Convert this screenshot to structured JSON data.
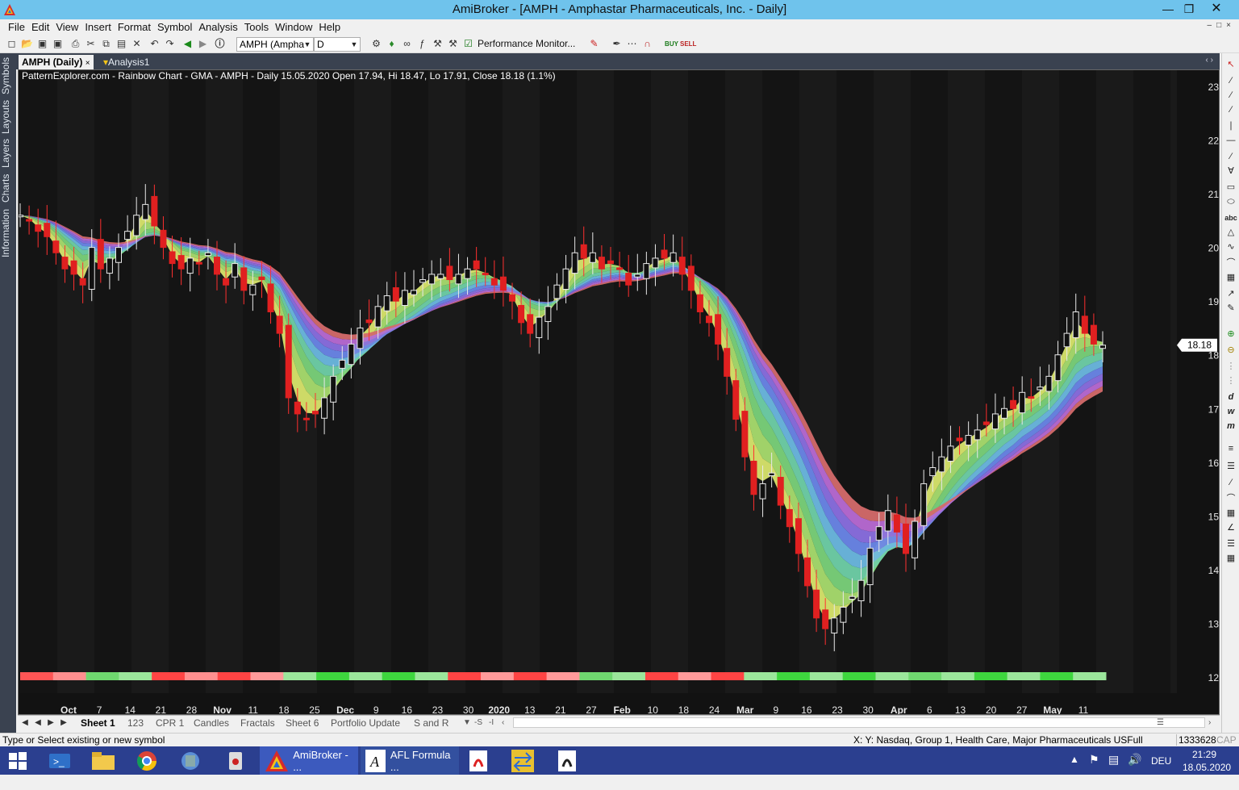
{
  "window": {
    "title": "AmiBroker - [AMPH - Amphastar Pharmaceuticals, Inc. - Daily]"
  },
  "menu": [
    "File",
    "Edit",
    "View",
    "Insert",
    "Format",
    "Symbol",
    "Analysis",
    "Tools",
    "Window",
    "Help"
  ],
  "toolbar": {
    "symbol": "AMPH (Ampha",
    "interval": "D",
    "performance_monitor": "Performance Monitor..."
  },
  "sidebar_tabs": [
    "Symbols",
    "Layouts",
    "Layers",
    "Charts",
    "Information"
  ],
  "doc_tabs": [
    {
      "label": "AMPH (Daily)",
      "active": true
    },
    {
      "label": "Analysis1",
      "active": false
    }
  ],
  "chart_data": {
    "type": "candlestick",
    "title": "PatternExplorer.com - Rainbow Chart  - GMA - AMPH - Daily 15.05.2020 Open 17.94, Hi 18.47, Lo 17.91, Close 18.18 (1.1%)",
    "last_price": "18.18",
    "y_ticks": [
      23,
      22,
      21,
      20,
      19,
      18,
      17,
      16,
      15,
      14,
      13,
      12
    ],
    "x_ticks": [
      {
        "label": "Oct",
        "bold": true
      },
      {
        "label": "7"
      },
      {
        "label": "14"
      },
      {
        "label": "21"
      },
      {
        "label": "28"
      },
      {
        "label": "Nov",
        "bold": true
      },
      {
        "label": "11"
      },
      {
        "label": "18"
      },
      {
        "label": "25"
      },
      {
        "label": "Dec",
        "bold": true
      },
      {
        "label": "9"
      },
      {
        "label": "16"
      },
      {
        "label": "23"
      },
      {
        "label": "30"
      },
      {
        "label": "2020",
        "bold": true
      },
      {
        "label": "13"
      },
      {
        "label": "21"
      },
      {
        "label": "27"
      },
      {
        "label": "Feb",
        "bold": true
      },
      {
        "label": "10"
      },
      {
        "label": "18"
      },
      {
        "label": "24"
      },
      {
        "label": "Mar",
        "bold": true
      },
      {
        "label": "9"
      },
      {
        "label": "16"
      },
      {
        "label": "23"
      },
      {
        "label": "30"
      },
      {
        "label": "Apr",
        "bold": true
      },
      {
        "label": "6"
      },
      {
        "label": "13"
      },
      {
        "label": "20"
      },
      {
        "label": "27"
      },
      {
        "label": "May",
        "bold": true
      },
      {
        "label": "11"
      }
    ],
    "close_series": [
      20.6,
      20.5,
      20.3,
      20.2,
      19.9,
      19.6,
      19.5,
      19.3,
      20.0,
      19.6,
      19.8,
      20.0,
      20.3,
      20.6,
      20.8,
      20.4,
      20.0,
      19.7,
      19.6,
      19.8,
      19.7,
      19.9,
      19.5,
      19.3,
      19.7,
      19.2,
      19.3,
      19.4,
      18.8,
      18.4,
      17.2,
      16.9,
      16.8,
      16.9,
      17.2,
      17.6,
      17.9,
      18.2,
      18.5,
      18.6,
      18.9,
      19.1,
      19.0,
      19.2,
      19.2,
      19.4,
      19.5,
      19.5,
      19.4,
      19.5,
      19.6,
      19.6,
      19.5,
      19.3,
      19.2,
      19.0,
      18.6,
      18.4,
      18.7,
      18.9,
      19.3,
      19.6,
      19.9,
      19.8,
      19.9,
      19.6,
      19.7,
      19.6,
      19.3,
      19.5,
      19.7,
      19.8,
      19.8,
      19.9,
      19.5,
      19.2,
      18.8,
      18.6,
      18.2,
      17.6,
      16.8,
      16.1,
      15.4,
      15.6,
      15.8,
      15.2,
      14.8,
      14.3,
      13.7,
      13.1,
      12.9,
      13.1,
      13.3,
      13.5,
      13.8,
      14.4,
      14.8,
      15.1,
      14.7,
      14.3,
      14.9,
      15.6,
      15.9,
      16.1,
      16.3,
      16.4,
      16.5,
      16.6,
      16.7,
      16.9,
      17.0,
      17.0,
      17.3,
      17.2,
      17.4,
      17.6,
      18.0,
      18.4,
      18.8,
      18.4,
      18.2,
      18.18
    ],
    "bars": [
      {
        "c": "#ff5555"
      },
      {
        "c": "#ff8f8f"
      },
      {
        "c": "#6fd86f"
      },
      {
        "c": "#9be69b"
      },
      {
        "c": "#ff4444"
      },
      {
        "c": "#ff8f8f"
      },
      {
        "c": "#ff4444"
      },
      {
        "c": "#ff9a9a"
      },
      {
        "c": "#9be69b"
      },
      {
        "c": "#3ed63e"
      },
      {
        "c": "#9be69b"
      },
      {
        "c": "#3ed63e"
      },
      {
        "c": "#9be69b"
      },
      {
        "c": "#ff4444"
      },
      {
        "c": "#ff9a9a"
      },
      {
        "c": "#ff4444"
      },
      {
        "c": "#ff9a9a"
      },
      {
        "c": "#6fd86f"
      },
      {
        "c": "#9be69b"
      },
      {
        "c": "#ff4444"
      },
      {
        "c": "#ff9a9a"
      },
      {
        "c": "#ff4444"
      },
      {
        "c": "#9be69b"
      },
      {
        "c": "#3ed63e"
      },
      {
        "c": "#9be69b"
      },
      {
        "c": "#3ed63e"
      },
      {
        "c": "#9be69b"
      },
      {
        "c": "#6fd86f"
      },
      {
        "c": "#9be69b"
      },
      {
        "c": "#3ed63e"
      },
      {
        "c": "#9be69b"
      },
      {
        "c": "#3ed63e"
      },
      {
        "c": "#9be69b"
      }
    ]
  },
  "sheets": [
    "Sheet 1",
    "123",
    "CPR 1",
    "Candles",
    "Fractals",
    "Sheet 6",
    "Portfolio Update",
    "S and R"
  ],
  "sheet_ctrl": [
    "-S",
    "-I"
  ],
  "status": {
    "left": "Type or Select existing or new symbol",
    "right": "X: Y: Nasdaq, Group 1, Health Care, Major Pharmaceuticals USFull",
    "number": "1333628",
    "cap": "CAP"
  },
  "taskbar": {
    "apps": [
      {
        "label": "AmiBroker - ..."
      },
      {
        "label": "AFL Formula ..."
      }
    ],
    "lang": "DEU",
    "time": "21:29",
    "date": "18.05.2020"
  }
}
